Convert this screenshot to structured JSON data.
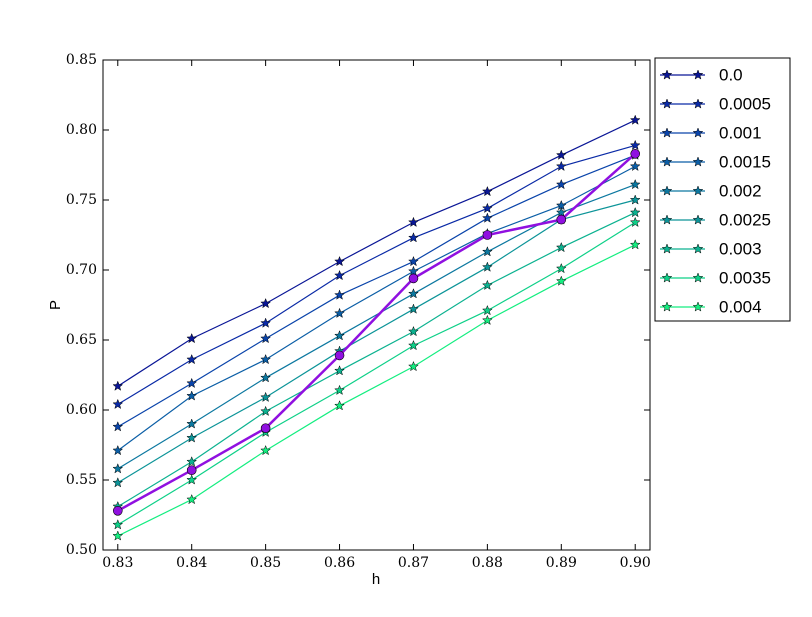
{
  "chart_data": {
    "type": "line",
    "x_label": "h",
    "y_label": "P",
    "x": [
      0.83,
      0.84,
      0.85,
      0.86,
      0.87,
      0.88,
      0.89,
      0.9
    ],
    "xlim": [
      0.828,
      0.902
    ],
    "xticks": [
      0.83,
      0.84,
      0.85,
      0.86,
      0.87,
      0.88,
      0.89,
      {
        "value": 0.9,
        "label": "0.90"
      }
    ],
    "ylim": [
      0.5,
      0.85
    ],
    "yticks": [
      {
        "value": 0.5,
        "label": "0.50"
      },
      0.55,
      {
        "value": 0.6,
        "label": "0.60"
      },
      0.65,
      {
        "value": 0.7,
        "label": "0.70"
      },
      0.75,
      {
        "value": 0.8,
        "label": "0.80"
      },
      0.85
    ],
    "legend": "outside-upper-right",
    "series": [
      {
        "name": "0.0",
        "color": "#0a1696",
        "marker": "star",
        "values": [
          0.617,
          0.651,
          0.676,
          0.706,
          0.734,
          0.756,
          0.782,
          0.807
        ]
      },
      {
        "name": "0.0005",
        "color": "#0a2aa6",
        "marker": "star",
        "values": [
          0.604,
          0.636,
          0.662,
          0.696,
          0.723,
          0.744,
          0.774,
          0.789
        ]
      },
      {
        "name": "0.001",
        "color": "#0a44aa",
        "marker": "star",
        "values": [
          0.588,
          0.619,
          0.651,
          0.682,
          0.706,
          0.737,
          0.761,
          0.782
        ]
      },
      {
        "name": "0.0015",
        "color": "#0b5ea6",
        "marker": "star",
        "values": [
          0.571,
          0.61,
          0.636,
          0.669,
          0.699,
          0.726,
          0.746,
          0.774
        ]
      },
      {
        "name": "0.002",
        "color": "#0c78a0",
        "marker": "star",
        "values": [
          0.558,
          0.59,
          0.623,
          0.653,
          0.683,
          0.713,
          0.741,
          0.761
        ]
      },
      {
        "name": "0.0025",
        "color": "#0c9498",
        "marker": "star",
        "values": [
          0.548,
          0.58,
          0.609,
          0.642,
          0.672,
          0.702,
          0.736,
          0.75
        ]
      },
      {
        "name": "0.003",
        "color": "#0cb290",
        "marker": "star",
        "values": [
          0.531,
          0.563,
          0.599,
          0.628,
          0.656,
          0.689,
          0.716,
          0.741
        ]
      },
      {
        "name": "0.0035",
        "color": "#0ed088",
        "marker": "star",
        "values": [
          0.518,
          0.55,
          0.584,
          0.614,
          0.646,
          0.671,
          0.701,
          0.734
        ]
      },
      {
        "name": "0.004",
        "color": "#14ee80",
        "marker": "star",
        "values": [
          0.51,
          0.536,
          0.571,
          0.603,
          0.631,
          0.664,
          0.692,
          0.718
        ]
      },
      {
        "color": "#9010e0",
        "marker": "circle",
        "width": 2.5,
        "values": [
          0.528,
          0.557,
          0.587,
          0.639,
          0.694,
          0.725,
          0.736,
          0.783
        ]
      }
    ]
  }
}
